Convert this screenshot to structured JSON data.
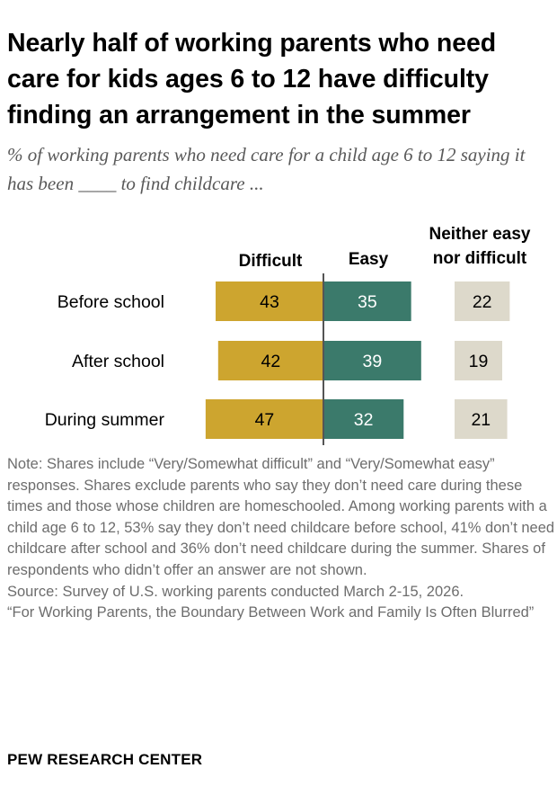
{
  "chart_data": {
    "type": "bar",
    "title": "Nearly half of working parents who need care for kids ages 6 to 12 have difficulty finding an arrangement in the summer",
    "subtitle": "% of working parents who need care for a child age 6 to 12 saying it has been ____ to find childcare ...",
    "categories": [
      "Before school",
      "After school",
      "During summer"
    ],
    "series": [
      {
        "name": "Difficult",
        "values": [
          43,
          42,
          47
        ],
        "color": "#cda52f"
      },
      {
        "name": "Easy",
        "values": [
          35,
          39,
          32
        ],
        "color": "#3b7a6b"
      },
      {
        "name": "Neither easy nor difficult",
        "name_lines": [
          "Neither easy",
          "nor difficult"
        ],
        "values": [
          22,
          19,
          21
        ],
        "color": "#ddd9cb"
      }
    ],
    "layout": "diverging stacked bar with separate neutral column"
  },
  "notes": [
    "Note: Shares include “Very/Somewhat difficult” and “Very/Somewhat easy” responses. Shares exclude parents who say they don’t need care during these times and those whose children are homeschooled. Among working parents with a child age 6 to 12, 53% say they don’t need childcare before school, 41% don’t need childcare after school and 36% don’t need childcare during the summer. Shares of respondents who didn’t offer an answer are not shown.",
    "Source: Survey of U.S. working parents conducted March 2-15, 2026.",
    "“For Working Parents, the Boundary Between Work and Family Is Often Blurred”"
  ],
  "brand": "PEW RESEARCH CENTER"
}
